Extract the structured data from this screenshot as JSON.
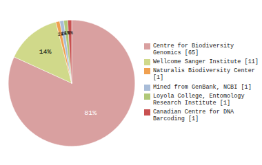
{
  "chart_data": {
    "type": "pie",
    "categories": [
      "Centre for Biodiversity\nGenomics [65]",
      "Wellcome Sanger Institute [11]",
      "Naturalis Biodiversity Center [1]",
      "Mined from GenBank, NCBI [1]",
      "Loyola College, Entomology\nResearch Institute [1]",
      "Canadian Centre for DNA\nBarcoding [1]"
    ],
    "values": [
      81,
      14,
      1,
      1,
      1,
      1
    ],
    "value_labels": [
      "81%",
      "14%",
      "1%",
      "1%",
      "1%",
      "1%"
    ],
    "colors": [
      "#d9a0a0",
      "#d0d98a",
      "#f0a050",
      "#a8bcd8",
      "#b0c878",
      "#c85050"
    ],
    "data_labels": true,
    "legend": "right"
  }
}
